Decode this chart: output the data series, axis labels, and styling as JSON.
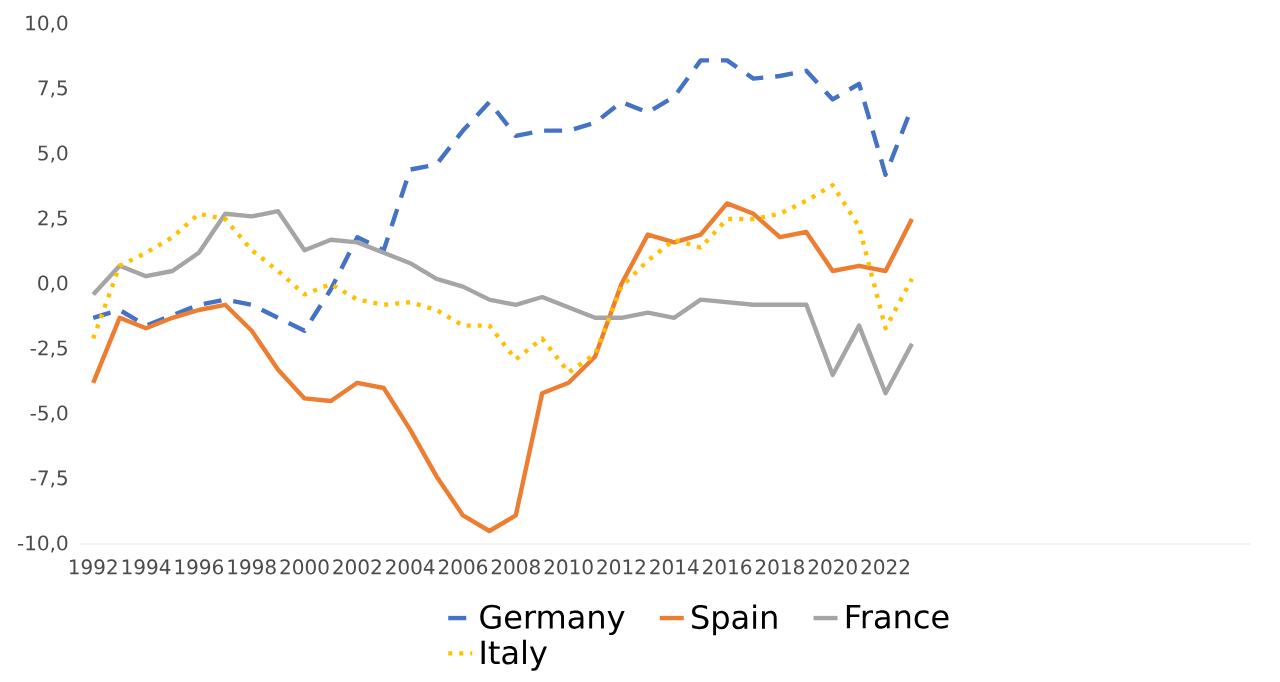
{
  "chart_data": {
    "type": "line",
    "x": [
      1992,
      1993,
      1994,
      1995,
      1996,
      1997,
      1998,
      1999,
      2000,
      2001,
      2002,
      2003,
      2004,
      2005,
      2006,
      2007,
      2008,
      2009,
      2010,
      2011,
      2012,
      2013,
      2014,
      2015,
      2016,
      2017,
      2018,
      2019,
      2020,
      2021,
      2022,
      2023
    ],
    "series": [
      {
        "name": "Germany",
        "color": "#4472c4",
        "line_style": "dashed",
        "values": [
          -1.3,
          -1.0,
          -1.6,
          -1.2,
          -0.8,
          -0.6,
          -0.8,
          -1.3,
          -1.8,
          -0.2,
          1.8,
          1.3,
          4.4,
          4.6,
          5.9,
          7.0,
          5.7,
          5.9,
          5.9,
          6.2,
          7.0,
          6.6,
          7.2,
          8.6,
          8.6,
          7.9,
          8.0,
          8.2,
          7.1,
          7.7,
          4.2,
          6.8
        ]
      },
      {
        "name": "Spain",
        "color": "#ed7d31",
        "line_style": "solid",
        "values": [
          -3.8,
          -1.3,
          -1.7,
          -1.3,
          -1.0,
          -0.8,
          -1.8,
          -3.3,
          -4.4,
          -4.5,
          -3.8,
          -4.0,
          -5.6,
          -7.4,
          -8.9,
          -9.5,
          -8.9,
          -4.2,
          -3.8,
          -2.8,
          0.0,
          1.9,
          1.6,
          1.9,
          3.1,
          2.7,
          1.8,
          2.0,
          0.5,
          0.7,
          0.5,
          2.5
        ]
      },
      {
        "name": "France",
        "color": "#a5a5a5",
        "line_style": "solid",
        "values": [
          -0.4,
          0.7,
          0.3,
          0.5,
          1.2,
          2.7,
          2.6,
          2.8,
          1.3,
          1.7,
          1.6,
          1.2,
          0.8,
          0.2,
          -0.1,
          -0.6,
          -0.8,
          -0.5,
          -0.9,
          -1.3,
          -1.3,
          -1.1,
          -1.3,
          -0.6,
          -0.7,
          -0.8,
          -0.8,
          -0.8,
          -3.5,
          -1.6,
          -4.2,
          -2.3
        ]
      },
      {
        "name": "Italy",
        "color": "#ffc000",
        "line_style": "dotted",
        "values": [
          -2.1,
          0.7,
          1.2,
          1.8,
          2.7,
          2.5,
          1.3,
          0.5,
          -0.4,
          0.0,
          -0.6,
          -0.8,
          -0.7,
          -1.0,
          -1.6,
          -1.6,
          -2.9,
          -2.1,
          -3.4,
          -2.7,
          -0.1,
          0.9,
          1.7,
          1.4,
          2.5,
          2.5,
          2.7,
          3.2,
          3.8,
          2.2,
          -1.7,
          0.2
        ]
      }
    ],
    "xlim": [
      1991.5,
      2035.8
    ],
    "xticks": [
      1992,
      1994,
      1996,
      1998,
      2000,
      2002,
      2004,
      2006,
      2008,
      2010,
      2012,
      2014,
      2016,
      2018,
      2020,
      2022
    ],
    "ylim": [
      -10,
      10
    ],
    "yticks": [
      {
        "value": -10,
        "label": "-10,0"
      },
      {
        "value": -7.5,
        "label": "-7,5"
      },
      {
        "value": -5,
        "label": "-5,0"
      },
      {
        "value": -2.5,
        "label": "-2,5"
      },
      {
        "value": 0,
        "label": "0,0"
      },
      {
        "value": 2.5,
        "label": "2,5"
      },
      {
        "value": 5,
        "label": "5,0"
      },
      {
        "value": 7.5,
        "label": "7,5"
      },
      {
        "value": 10,
        "label": "10,0"
      }
    ],
    "grid": false,
    "legend": "bottom",
    "marker": "none"
  }
}
